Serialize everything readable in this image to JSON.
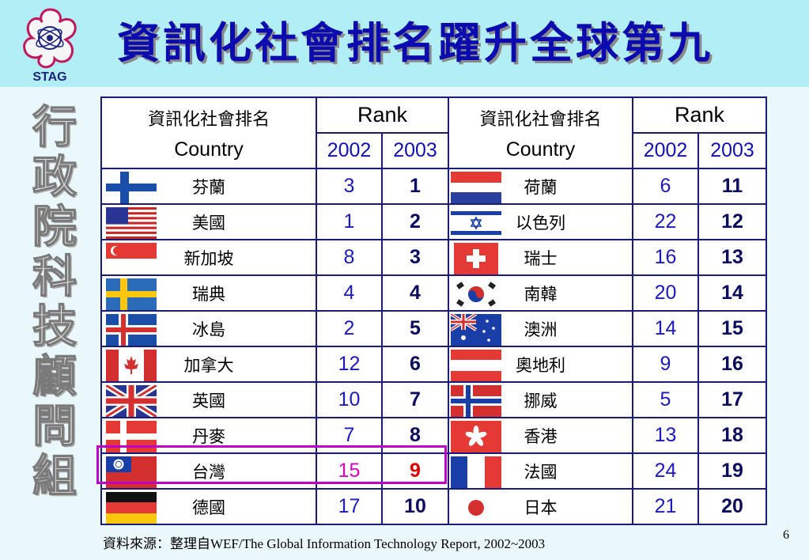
{
  "slide": {
    "title": "資訊化社會排名躍升全球第九",
    "logo_text": "STAG",
    "side_label": [
      "行",
      "政",
      "院",
      "科",
      "技",
      "顧",
      "問",
      "組"
    ],
    "page_number": "6",
    "source": "資料來源：整理自WEF/The Global Information Technology Report, 2002~2003"
  },
  "table": {
    "header_zh": "資訊化社會排名",
    "header_en": "Country",
    "header_rank": "Rank",
    "year1": "2002",
    "year2": "2003",
    "left": [
      {
        "flag": "finland-flag-icon",
        "name": "芬蘭",
        "r2002": "3",
        "r2003": "1"
      },
      {
        "flag": "usa-flag-icon",
        "name": "美國",
        "r2002": "1",
        "r2003": "2"
      },
      {
        "flag": "singapore-flag-icon",
        "name": "新加坡",
        "r2002": "8",
        "r2003": "3"
      },
      {
        "flag": "sweden-flag-icon",
        "name": "瑞典",
        "r2002": "4",
        "r2003": "4"
      },
      {
        "flag": "iceland-flag-icon",
        "name": "冰島",
        "r2002": "2",
        "r2003": "5"
      },
      {
        "flag": "canada-flag-icon",
        "name": "加拿大",
        "r2002": "12",
        "r2003": "6"
      },
      {
        "flag": "uk-flag-icon",
        "name": "英國",
        "r2002": "10",
        "r2003": "7"
      },
      {
        "flag": "denmark-flag-icon",
        "name": "丹麥",
        "r2002": "7",
        "r2003": "8"
      },
      {
        "flag": "taiwan-flag-icon",
        "name": "台灣",
        "r2002": "15",
        "r2003": "9"
      },
      {
        "flag": "germany-flag-icon",
        "name": "德國",
        "r2002": "17",
        "r2003": "10"
      }
    ],
    "right": [
      {
        "flag": "netherlands-flag-icon",
        "name": "荷蘭",
        "r2002": "6",
        "r2003": "11"
      },
      {
        "flag": "israel-flag-icon",
        "name": "以色列",
        "r2002": "22",
        "r2003": "12"
      },
      {
        "flag": "switzerland-flag-icon",
        "name": "瑞士",
        "r2002": "16",
        "r2003": "13"
      },
      {
        "flag": "korea-flag-icon",
        "name": "南韓",
        "r2002": "20",
        "r2003": "14"
      },
      {
        "flag": "australia-flag-icon",
        "name": "澳洲",
        "r2002": "14",
        "r2003": "15"
      },
      {
        "flag": "austria-flag-icon",
        "name": "奧地利",
        "r2002": "9",
        "r2003": "16"
      },
      {
        "flag": "norway-flag-icon",
        "name": "挪威",
        "r2002": "5",
        "r2003": "17"
      },
      {
        "flag": "hongkong-flag-icon",
        "name": "香港",
        "r2002": "13",
        "r2003": "18"
      },
      {
        "flag": "france-flag-icon",
        "name": "法國",
        "r2002": "24",
        "r2003": "19"
      },
      {
        "flag": "japan-flag-icon",
        "name": "日本",
        "r2002": "21",
        "r2003": "20"
      }
    ]
  },
  "colors": {
    "header_band": "#b2eef5",
    "title": "#0b0bb0",
    "highlight_border": "#c000c8",
    "highlight_2002": "#e000c0",
    "highlight_2003": "#e00000"
  }
}
